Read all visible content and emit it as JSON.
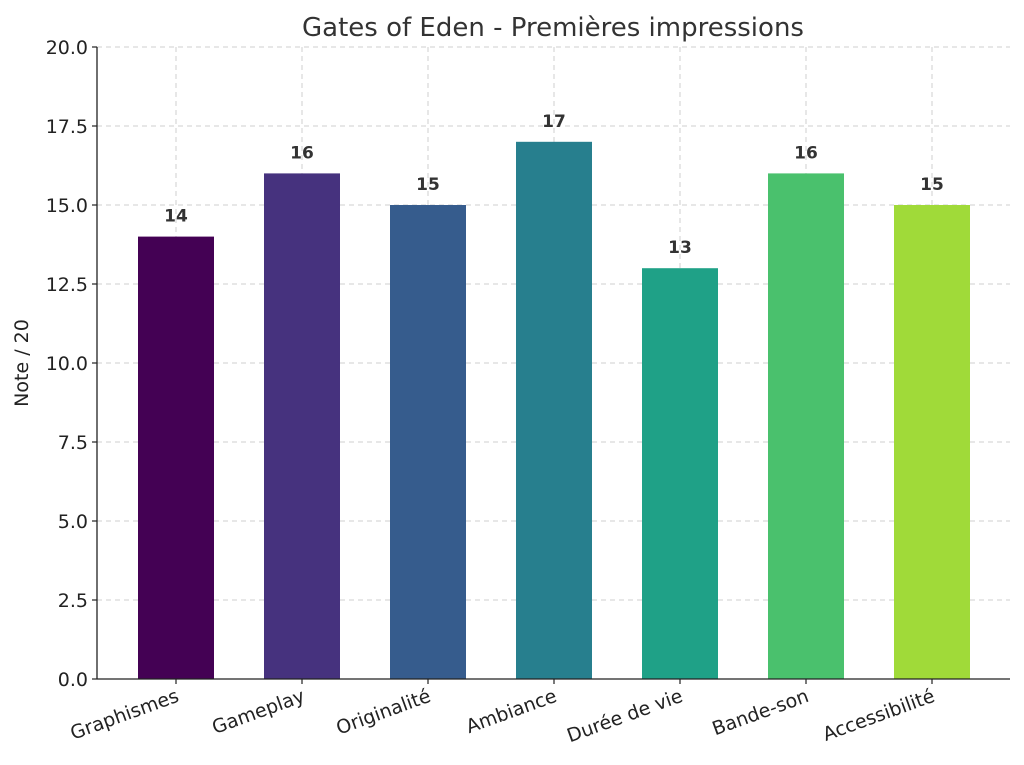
{
  "chart_data": {
    "type": "bar",
    "title": "Gates of Eden - Premières impressions",
    "xlabel": "",
    "ylabel": "Note / 20",
    "ylim": [
      0,
      20
    ],
    "yticks": [
      "0.0",
      "2.5",
      "5.0",
      "7.5",
      "10.0",
      "12.5",
      "15.0",
      "17.5",
      "20.0"
    ],
    "categories": [
      "Graphismes",
      "Gameplay",
      "Originalité",
      "Ambiance",
      "Durée de vie",
      "Bande-son",
      "Accessibilité"
    ],
    "values": [
      14,
      16,
      15,
      17,
      13,
      16,
      15
    ],
    "colors": [
      "#440154",
      "#46327e",
      "#365c8d",
      "#277f8e",
      "#1fa187",
      "#4ac16d",
      "#a0da39"
    ],
    "grid": true,
    "data_labels": true
  }
}
